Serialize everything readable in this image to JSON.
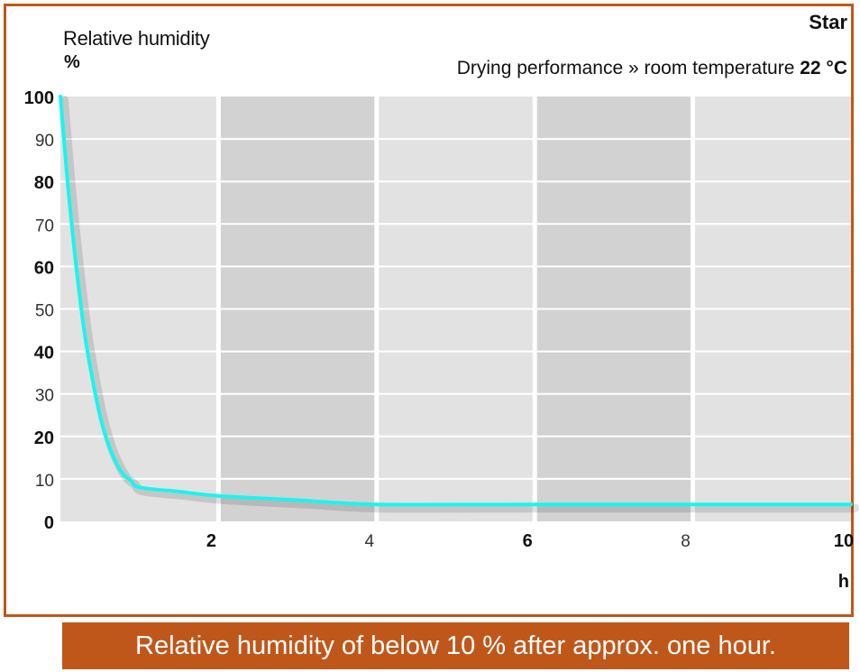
{
  "header": {
    "brand": "Star",
    "subtitle_prefix": "Drying performance » room temperature ",
    "subtitle_value": "22 °C"
  },
  "caption": "Relative humidity of below 10 % after approx. one hour.",
  "chart_data": {
    "type": "line",
    "ylabel": "Relative humidity",
    "yunit": "%",
    "xunit": "h",
    "xlim": [
      0,
      10
    ],
    "ylim": [
      0,
      100
    ],
    "x_ticks": [
      {
        "v": 2,
        "label": "2",
        "bold": true
      },
      {
        "v": 4,
        "label": "4",
        "bold": false
      },
      {
        "v": 6,
        "label": "6",
        "bold": true
      },
      {
        "v": 8,
        "label": "8",
        "bold": false
      },
      {
        "v": 10,
        "label": "10",
        "bold": true
      }
    ],
    "y_ticks": [
      {
        "v": 0,
        "label": "0",
        "bold": true
      },
      {
        "v": 10,
        "label": "10",
        "bold": false
      },
      {
        "v": 20,
        "label": "20",
        "bold": true
      },
      {
        "v": 30,
        "label": "30",
        "bold": false
      },
      {
        "v": 40,
        "label": "40",
        "bold": true
      },
      {
        "v": 50,
        "label": "50",
        "bold": false
      },
      {
        "v": 60,
        "label": "60",
        "bold": true
      },
      {
        "v": 70,
        "label": "70",
        "bold": false
      },
      {
        "v": 80,
        "label": "80",
        "bold": true
      },
      {
        "v": 90,
        "label": "90",
        "bold": false
      },
      {
        "v": 100,
        "label": "100",
        "bold": true
      }
    ],
    "series": [
      {
        "color": "#19f5f0",
        "x": [
          0,
          0.1,
          0.2,
          0.3,
          0.4,
          0.5,
          0.6,
          0.7,
          0.8,
          0.9,
          1.0,
          1.5,
          2,
          3,
          4,
          6,
          8,
          10
        ],
        "y": [
          100,
          78,
          60,
          45,
          34,
          25,
          18.5,
          14,
          11,
          9.5,
          8,
          7,
          6,
          5,
          4,
          4,
          4,
          4
        ]
      }
    ],
    "grid": true,
    "colors": {
      "band_light": "#e2e2e2",
      "band_dark": "#d2d2d2",
      "gridline": "#ffffff",
      "accent": "#c0571a"
    }
  }
}
